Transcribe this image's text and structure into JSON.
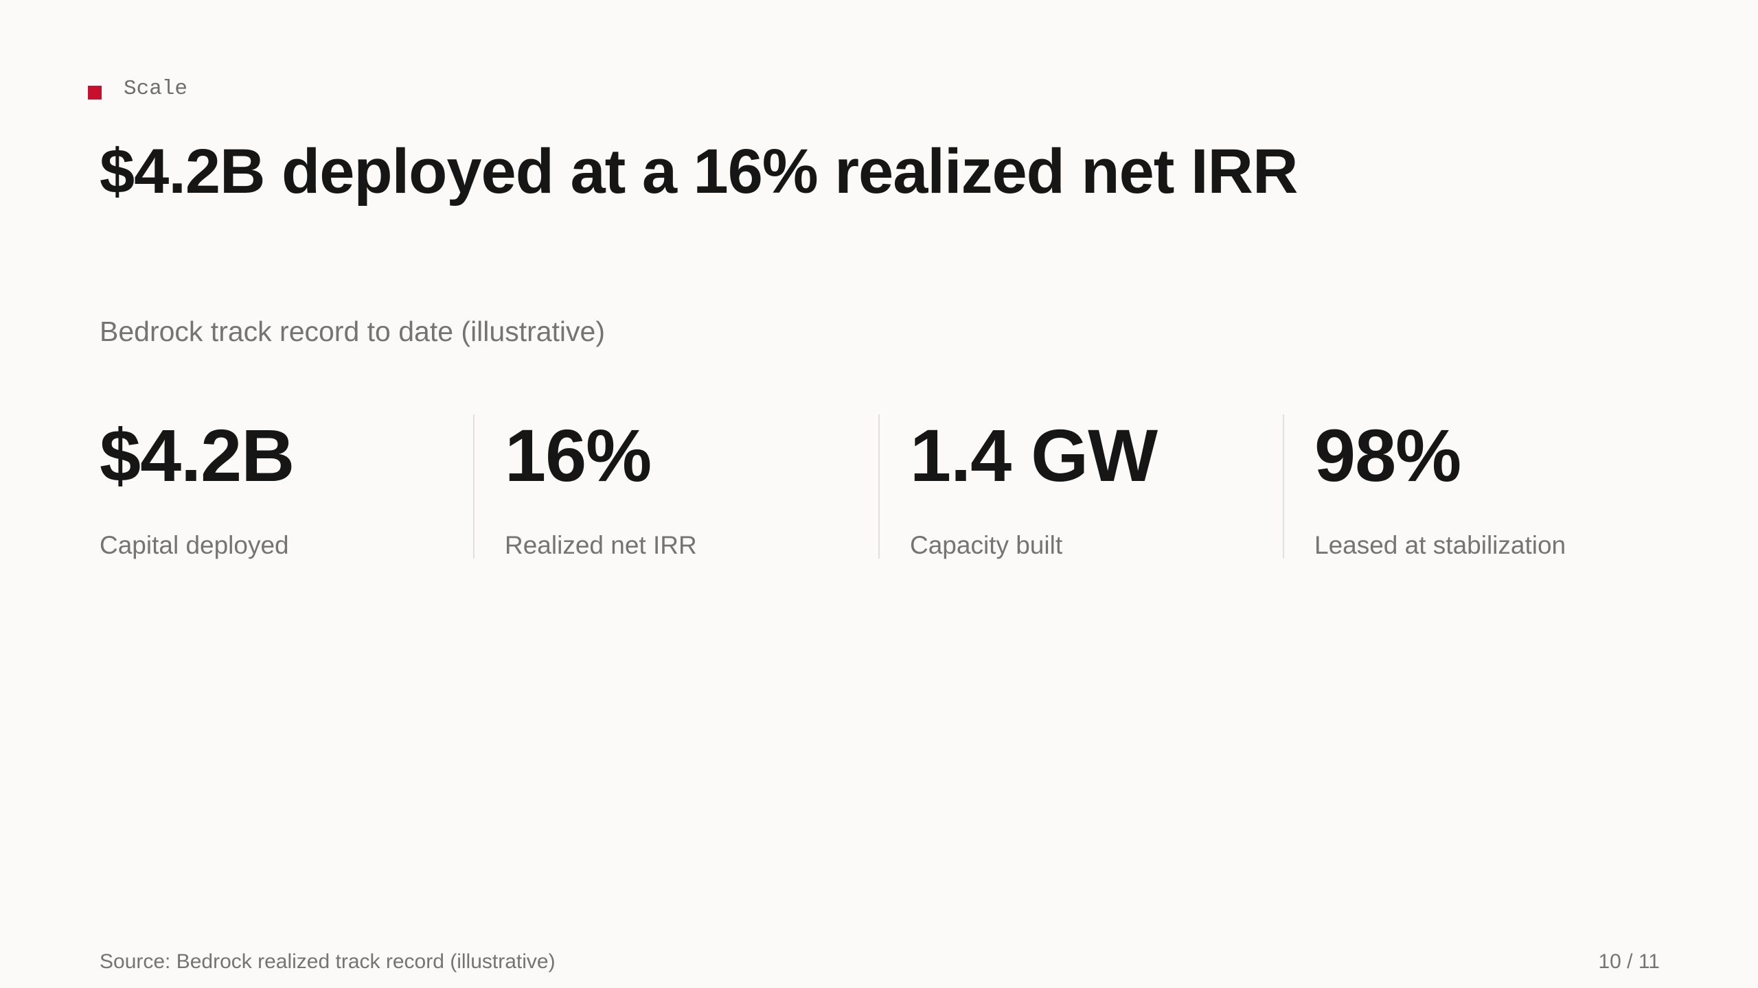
{
  "eyebrow": "Scale",
  "title": "$4.2B deployed at a 16% realized net IRR",
  "subtitle": "Bedrock track record to date (illustrative)",
  "stats": [
    {
      "value": "$4.2B",
      "label": "Capital deployed"
    },
    {
      "value": "16%",
      "label": "Realized net IRR"
    },
    {
      "value": "1.4 GW",
      "label": "Capacity built"
    },
    {
      "value": "98%",
      "label": "Leased at stabilization"
    }
  ],
  "footer": {
    "source": "Source: Bedrock realized track record (illustrative)",
    "page": "10 / 11"
  }
}
